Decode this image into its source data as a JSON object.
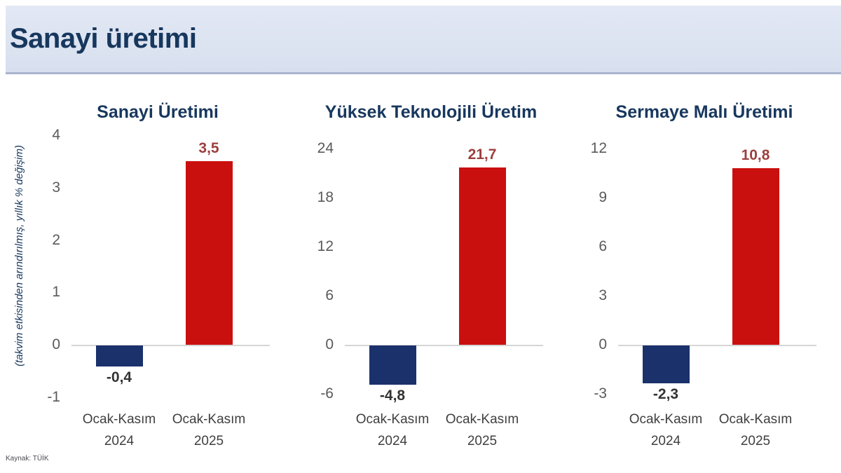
{
  "header": {
    "title": "Sanayi üretimi"
  },
  "ylabel": "(takvim etkisinden arındırılmış, yıllık % değişim)",
  "source": "Kaynak: TÜİK",
  "colors": {
    "header_bg": "#dce3f1",
    "header_border": "#a9b4cf",
    "title_navy": "#17375d",
    "bar_navy": "#1a316b",
    "bar_red": "#c9100f",
    "positive_label": "#9c3f3e",
    "negative_label": "#333333",
    "tick_gray": "#5a5a5a",
    "zero_line": "#d6d6d6"
  },
  "chart_data": [
    {
      "type": "bar",
      "title": "Sanayi Üretimi",
      "categories": [
        [
          "Ocak-Kasım",
          "2024"
        ],
        [
          "Ocak-Kasım",
          "2025"
        ]
      ],
      "values": [
        -0.4,
        3.5
      ],
      "value_labels": [
        "-0,4",
        "3,5"
      ],
      "bar_colors": [
        "#1a316b",
        "#c9100f"
      ],
      "yticks": [
        4,
        3,
        2,
        1,
        0,
        -1
      ],
      "ylim": [
        -1,
        4
      ],
      "xlabel": "",
      "ylabel": "(takvim etkisinden arındırılmış, yıllık % değişim)",
      "grid": false,
      "legend": "none"
    },
    {
      "type": "bar",
      "title": "Yüksek Teknolojili Üretim",
      "categories": [
        [
          "Ocak-Kasım",
          "2024"
        ],
        [
          "Ocak-Kasım",
          "2025"
        ]
      ],
      "values": [
        -4.8,
        21.7
      ],
      "value_labels": [
        "-4,8",
        "21,7"
      ],
      "bar_colors": [
        "#1a316b",
        "#c9100f"
      ],
      "yticks": [
        24,
        18,
        12,
        6,
        0,
        -6
      ],
      "ylim": [
        -6,
        24
      ],
      "xlabel": "",
      "ylabel": "(takvim etkisinden arındırılmış, yıllık % değişim)",
      "grid": false,
      "legend": "none"
    },
    {
      "type": "bar",
      "title": "Sermaye Malı Üretimi",
      "categories": [
        [
          "Ocak-Kasım",
          "2024"
        ],
        [
          "Ocak-Kasım",
          "2025"
        ]
      ],
      "values": [
        -2.3,
        10.8
      ],
      "value_labels": [
        "-2,3",
        "10,8"
      ],
      "bar_colors": [
        "#1a316b",
        "#c9100f"
      ],
      "yticks": [
        12,
        9,
        6,
        3,
        0,
        -3
      ],
      "ylim": [
        -3,
        12
      ],
      "xlabel": "",
      "ylabel": "(takvim etkisinden arındırılmış, yıllık % değişim)",
      "grid": false,
      "legend": "none"
    }
  ]
}
